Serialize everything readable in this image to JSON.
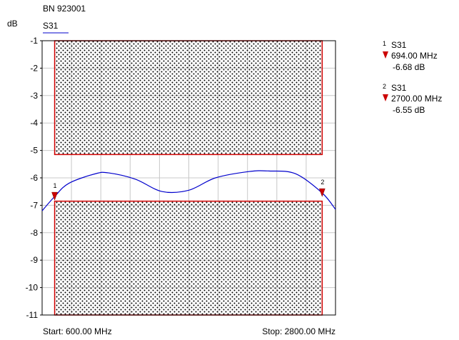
{
  "header": {
    "title": "BN 923001",
    "trace_label": "S31",
    "unit": "dB"
  },
  "footer": {
    "start": "Start: 600.00 MHz",
    "stop": "Stop: 2800.00 MHz"
  },
  "colors": {
    "trace": "#0000cc",
    "limit": "#d00000",
    "marker": "#cc0000",
    "grid": "#c8c8c8",
    "hatch": "#000000"
  },
  "markers": [
    {
      "num": "1",
      "trace": "S31",
      "freq": "694.00 MHz",
      "value": "-6.68 dB"
    },
    {
      "num": "2",
      "trace": "S31",
      "freq": "2700.00 MHz",
      "value": "-6.55 dB"
    }
  ],
  "chart_data": {
    "type": "line",
    "xlim": [
      600,
      2800
    ],
    "ylim": [
      -11,
      -1
    ],
    "yticks": [
      "-1",
      "-2",
      "-3",
      "-4",
      "-5",
      "-6",
      "-7",
      "-8",
      "-9",
      "-10",
      "-11"
    ],
    "ylabel": "dB",
    "grid": true,
    "series": [
      {
        "name": "S31",
        "x": [
          600,
          694,
          800,
          1000,
          1100,
          1300,
          1500,
          1700,
          1900,
          2150,
          2300,
          2500,
          2700,
          2800
        ],
        "y": [
          -7.2,
          -6.68,
          -6.2,
          -5.85,
          -5.82,
          -6.05,
          -6.5,
          -6.45,
          -6.0,
          -5.77,
          -5.75,
          -5.85,
          -6.55,
          -7.15
        ]
      }
    ],
    "limit_regions": [
      {
        "x": [
          694,
          2700
        ],
        "y": [
          -5.15,
          -1
        ]
      },
      {
        "x": [
          694,
          2700
        ],
        "y": [
          -11,
          -6.85
        ]
      }
    ],
    "markers": [
      {
        "label": "1",
        "x": 694,
        "y": -6.68
      },
      {
        "label": "2",
        "x": 2700,
        "y": -6.55
      }
    ]
  }
}
